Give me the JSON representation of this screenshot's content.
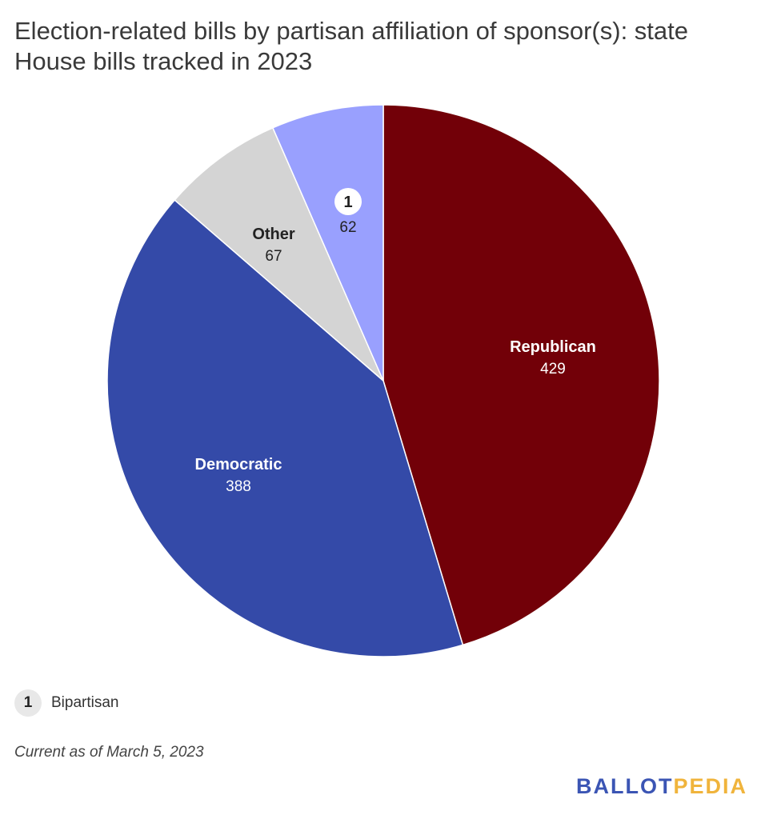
{
  "title": "Election-related bills by partisan affiliation of sponsor(s): state House bills tracked in 2023",
  "chart_data": {
    "type": "pie",
    "slices": [
      {
        "label": "Republican",
        "value": 429,
        "color": "#720008",
        "label_color": "#ffffff"
      },
      {
        "label": "Democratic",
        "value": 388,
        "color": "#344aa8",
        "label_color": "#ffffff"
      },
      {
        "label": "Other",
        "value": 67,
        "color": "#d4d4d4",
        "label_color": "#222222"
      },
      {
        "label": "1",
        "value": 62,
        "color": "#99a0fe",
        "label_color": "#222222",
        "badge": true
      }
    ]
  },
  "footnote": {
    "marker": "1",
    "text": "Bipartisan"
  },
  "note": "Current as of March 5, 2023",
  "logo": {
    "part1": "BALLOT",
    "part2": "PEDIA"
  }
}
